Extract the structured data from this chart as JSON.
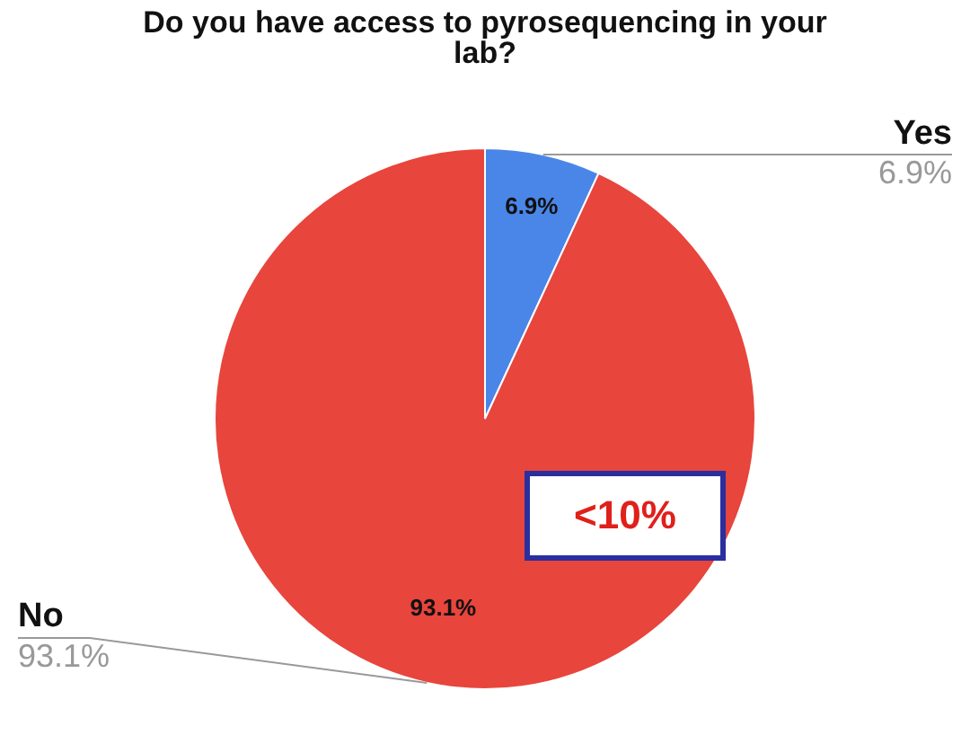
{
  "chart_data": {
    "type": "pie",
    "title": "Do you have access to pyrosequencing in your lab?",
    "categories": [
      "Yes",
      "No"
    ],
    "values": [
      6.9,
      93.1
    ],
    "colors": [
      "#4a86e8",
      "#e8453c"
    ],
    "value_labels": [
      "6.9%",
      "93.1%"
    ],
    "legend": false,
    "annotations": [
      "<10%"
    ]
  }
}
